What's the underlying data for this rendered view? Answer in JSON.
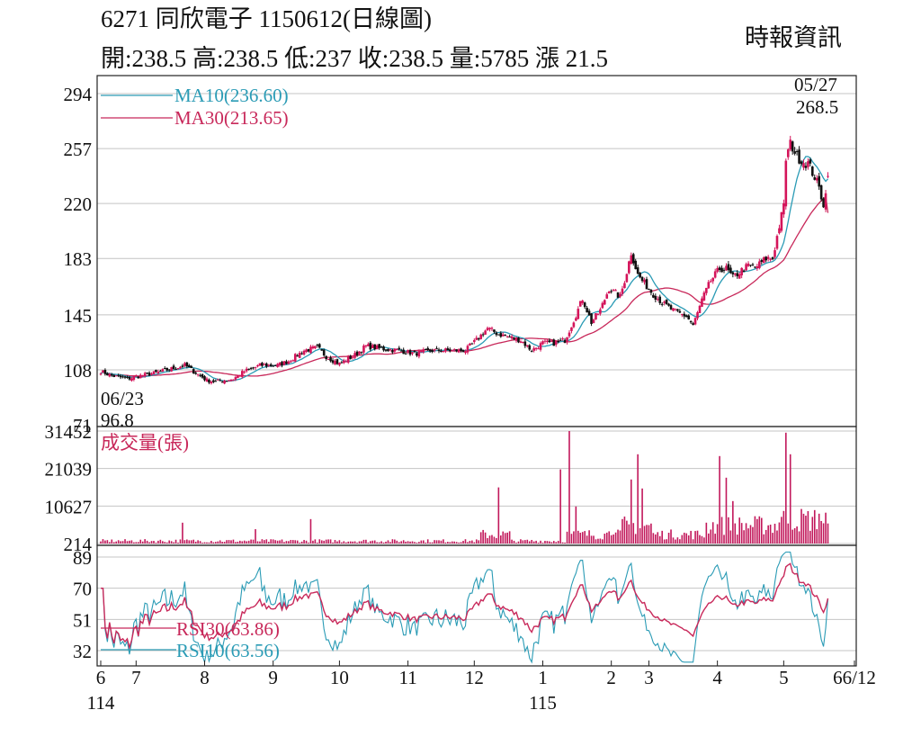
{
  "header": {
    "title": "6271  同欣電子 1150612(日線圖)",
    "quote": "開:238.5 高:238.5 低:237 收:238.5 量:5785 漲 21.5",
    "source": "時報資訊"
  },
  "colors": {
    "up": "#d4145a",
    "down": "#111111",
    "ma10": "#2a9bb5",
    "ma30": "#c8285a",
    "volume": "#c2185b",
    "rsi30": "#c8285a",
    "rsi10": "#2a9bb5",
    "grid": "#c4c4c4"
  },
  "chart_data": [
    {
      "type": "candlestick",
      "ylim": [
        71,
        294
      ],
      "yticks": [
        294,
        257,
        220,
        183,
        145,
        108,
        71
      ],
      "legend": [
        "MA10(236.60)",
        "MA30(213.65)"
      ],
      "annotations": {
        "high": {
          "date": "05/27",
          "value": "268.5"
        },
        "low": {
          "date": "06/23",
          "value": "96.8"
        }
      },
      "last": {
        "open": 238.5,
        "high": 238.5,
        "low": 237,
        "close": 238.5,
        "volume": 5785,
        "change": 21.5
      },
      "ma10_last": 236.6,
      "ma30_last": 213.65,
      "close_path": [
        [
          0,
          107
        ],
        [
          5,
          104
        ],
        [
          12,
          102
        ],
        [
          18,
          104
        ],
        [
          25,
          106
        ],
        [
          30,
          108
        ],
        [
          38,
          111
        ],
        [
          42,
          107
        ],
        [
          48,
          101
        ],
        [
          52,
          100
        ],
        [
          60,
          102
        ],
        [
          65,
          107
        ],
        [
          72,
          111
        ],
        [
          80,
          111
        ],
        [
          85,
          114
        ],
        [
          92,
          121
        ],
        [
          98,
          123
        ],
        [
          102,
          117
        ],
        [
          108,
          112
        ],
        [
          115,
          118
        ],
        [
          120,
          124
        ],
        [
          128,
          122
        ],
        [
          135,
          121
        ],
        [
          142,
          119
        ],
        [
          150,
          121
        ],
        [
          158,
          121
        ],
        [
          165,
          121
        ],
        [
          170,
          128
        ],
        [
          175,
          136
        ],
        [
          180,
          132
        ],
        [
          185,
          130
        ],
        [
          190,
          128
        ],
        [
          195,
          121
        ],
        [
          200,
          126
        ],
        [
          205,
          126
        ],
        [
          210,
          128
        ],
        [
          215,
          145
        ],
        [
          218,
          156
        ],
        [
          222,
          140
        ],
        [
          226,
          148
        ],
        [
          230,
          163
        ],
        [
          235,
          157
        ],
        [
          238,
          174
        ],
        [
          240,
          187
        ],
        [
          243,
          172
        ],
        [
          245,
          168
        ],
        [
          250,
          159
        ],
        [
          255,
          152
        ],
        [
          260,
          147
        ],
        [
          265,
          144
        ],
        [
          268,
          138
        ],
        [
          270,
          146
        ],
        [
          272,
          155
        ],
        [
          276,
          168
        ],
        [
          280,
          176
        ],
        [
          283,
          176
        ],
        [
          286,
          170
        ],
        [
          290,
          175
        ],
        [
          293,
          178
        ],
        [
          296,
          177
        ],
        [
          298,
          179
        ],
        [
          301,
          183
        ],
        [
          304,
          183
        ],
        [
          307,
          205
        ],
        [
          309,
          218
        ],
        [
          310,
          250
        ],
        [
          312,
          260
        ],
        [
          313,
          258
        ],
        [
          315,
          252
        ],
        [
          318,
          248
        ],
        [
          320,
          247
        ],
        [
          323,
          238
        ],
        [
          325,
          230
        ],
        [
          327,
          220
        ],
        [
          328,
          226
        ],
        [
          329,
          238.5
        ]
      ]
    },
    {
      "type": "bar",
      "title": "成交量(張)",
      "yticks": [
        31452,
        21039,
        10627,
        214
      ],
      "ylim": [
        214,
        31452
      ],
      "spikes": [
        [
          0,
          800
        ],
        [
          37,
          6000
        ],
        [
          70,
          4200
        ],
        [
          95,
          7000
        ],
        [
          180,
          15800
        ],
        [
          208,
          20800
        ],
        [
          212,
          31452
        ],
        [
          215,
          10500
        ],
        [
          240,
          18000
        ],
        [
          243,
          25000
        ],
        [
          245,
          15500
        ],
        [
          280,
          24500
        ],
        [
          283,
          18500
        ],
        [
          286,
          12000
        ],
        [
          310,
          31000
        ],
        [
          312,
          25000
        ],
        [
          325,
          8500
        ],
        [
          329,
          5785
        ]
      ]
    },
    {
      "type": "line",
      "yticks": [
        89,
        70,
        51,
        32
      ],
      "ylim": [
        23,
        92
      ],
      "series": [
        {
          "name": "RSI30(63.86)",
          "last": 63.86
        },
        {
          "name": "RSI10(63.56)",
          "last": 63.56
        }
      ]
    }
  ],
  "x_axis": {
    "months": [
      {
        "label": "6",
        "day": 0
      },
      {
        "label": "7",
        "day": 16
      },
      {
        "label": "8",
        "day": 47
      },
      {
        "label": "9",
        "day": 78
      },
      {
        "label": "10",
        "day": 108
      },
      {
        "label": "11",
        "day": 139
      },
      {
        "label": "12",
        "day": 169
      },
      {
        "label": "1",
        "day": 200
      },
      {
        "label": "2",
        "day": 231
      },
      {
        "label": "3",
        "day": 248
      },
      {
        "label": "4",
        "day": 279
      },
      {
        "label": "5",
        "day": 309
      },
      {
        "label": "66/12",
        "day": 341
      }
    ],
    "years": [
      {
        "label": "114",
        "day": 0
      },
      {
        "label": "115",
        "day": 200
      }
    ]
  }
}
